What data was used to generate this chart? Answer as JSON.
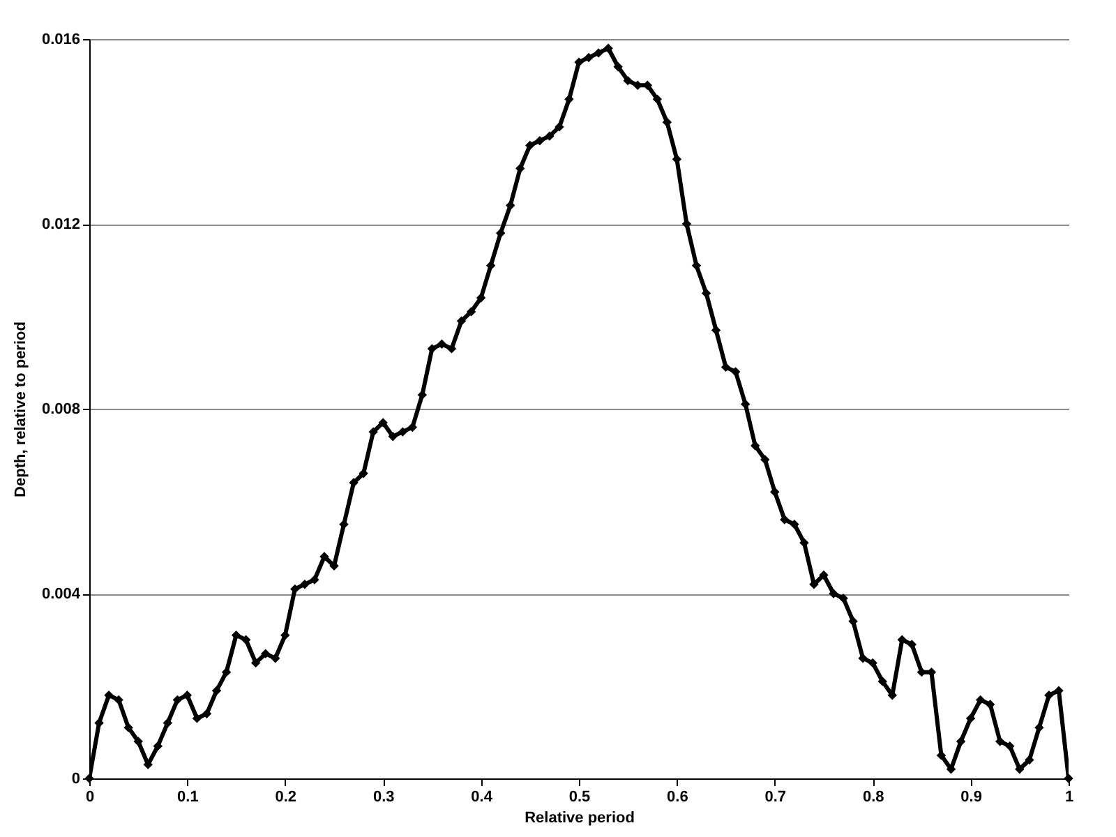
{
  "chart_data": {
    "type": "line",
    "xlabel": "Relative period",
    "ylabel": "Depth, relative to period",
    "x": [
      0,
      0.01,
      0.02,
      0.03,
      0.04,
      0.05,
      0.06,
      0.07,
      0.08,
      0.09,
      0.1,
      0.11,
      0.12,
      0.13,
      0.14,
      0.15,
      0.16,
      0.17,
      0.18,
      0.19,
      0.2,
      0.21,
      0.22,
      0.23,
      0.24,
      0.25,
      0.26,
      0.27,
      0.28,
      0.29,
      0.3,
      0.31,
      0.32,
      0.33,
      0.34,
      0.35,
      0.36,
      0.37,
      0.38,
      0.39,
      0.4,
      0.41,
      0.42,
      0.43,
      0.44,
      0.45,
      0.46,
      0.47,
      0.48,
      0.49,
      0.5,
      0.51,
      0.52,
      0.53,
      0.54,
      0.55,
      0.56,
      0.57,
      0.58,
      0.59,
      0.6,
      0.61,
      0.62,
      0.63,
      0.64,
      0.65,
      0.66,
      0.67,
      0.68,
      0.69,
      0.7,
      0.71,
      0.72,
      0.73,
      0.74,
      0.75,
      0.76,
      0.77,
      0.78,
      0.79,
      0.8,
      0.81,
      0.82,
      0.83,
      0.84,
      0.85,
      0.86,
      0.87,
      0.88,
      0.89,
      0.9,
      0.91,
      0.92,
      0.93,
      0.94,
      0.95,
      0.96,
      0.97,
      0.98,
      0.99,
      1
    ],
    "series": [
      {
        "color": "#000000",
        "values": [
          0,
          0.0012,
          0.0018,
          0.0017,
          0.0011,
          0.0008,
          0.0003,
          0.0007,
          0.0012,
          0.0017,
          0.0018,
          0.0013,
          0.0014,
          0.0019,
          0.0023,
          0.0031,
          0.003,
          0.0025,
          0.0027,
          0.0026,
          0.0031,
          0.0041,
          0.0042,
          0.0043,
          0.0048,
          0.0046,
          0.0055,
          0.0064,
          0.0066,
          0.0075,
          0.0077,
          0.0074,
          0.0075,
          0.0076,
          0.0083,
          0.0093,
          0.0094,
          0.0093,
          0.0099,
          0.0101,
          0.0104,
          0.0111,
          0.0118,
          0.0124,
          0.0132,
          0.0137,
          0.0138,
          0.0139,
          0.0141,
          0.0147,
          0.0155,
          0.0156,
          0.0157,
          0.0158,
          0.0154,
          0.0151,
          0.015,
          0.015,
          0.0147,
          0.0142,
          0.0134,
          0.012,
          0.0111,
          0.0105,
          0.0097,
          0.0089,
          0.0088,
          0.0081,
          0.0072,
          0.0069,
          0.0062,
          0.0056,
          0.0055,
          0.0051,
          0.0042,
          0.0044,
          0.004,
          0.0039,
          0.0034,
          0.0026,
          0.0025,
          0.0021,
          0.0018,
          0.003,
          0.0029,
          0.0023,
          0.0023,
          0.0005,
          0.0002,
          0.0008,
          0.0013,
          0.0017,
          0.0016,
          0.0008,
          0.0007,
          0.0002,
          0.0004,
          0.0011,
          0.0018,
          0.0019,
          0
        ]
      }
    ],
    "xlim": [
      0,
      1
    ],
    "xticks": [
      0,
      0.1,
      0.2,
      0.3,
      0.4,
      0.5,
      0.6,
      0.7,
      0.8,
      0.9,
      1
    ],
    "ylim": [
      0,
      0.016
    ],
    "yticks": [
      0,
      0.004,
      0.008,
      0.012,
      0.016
    ],
    "grid": "y",
    "marker": "diamond",
    "line_style": "solid",
    "legend": false
  }
}
